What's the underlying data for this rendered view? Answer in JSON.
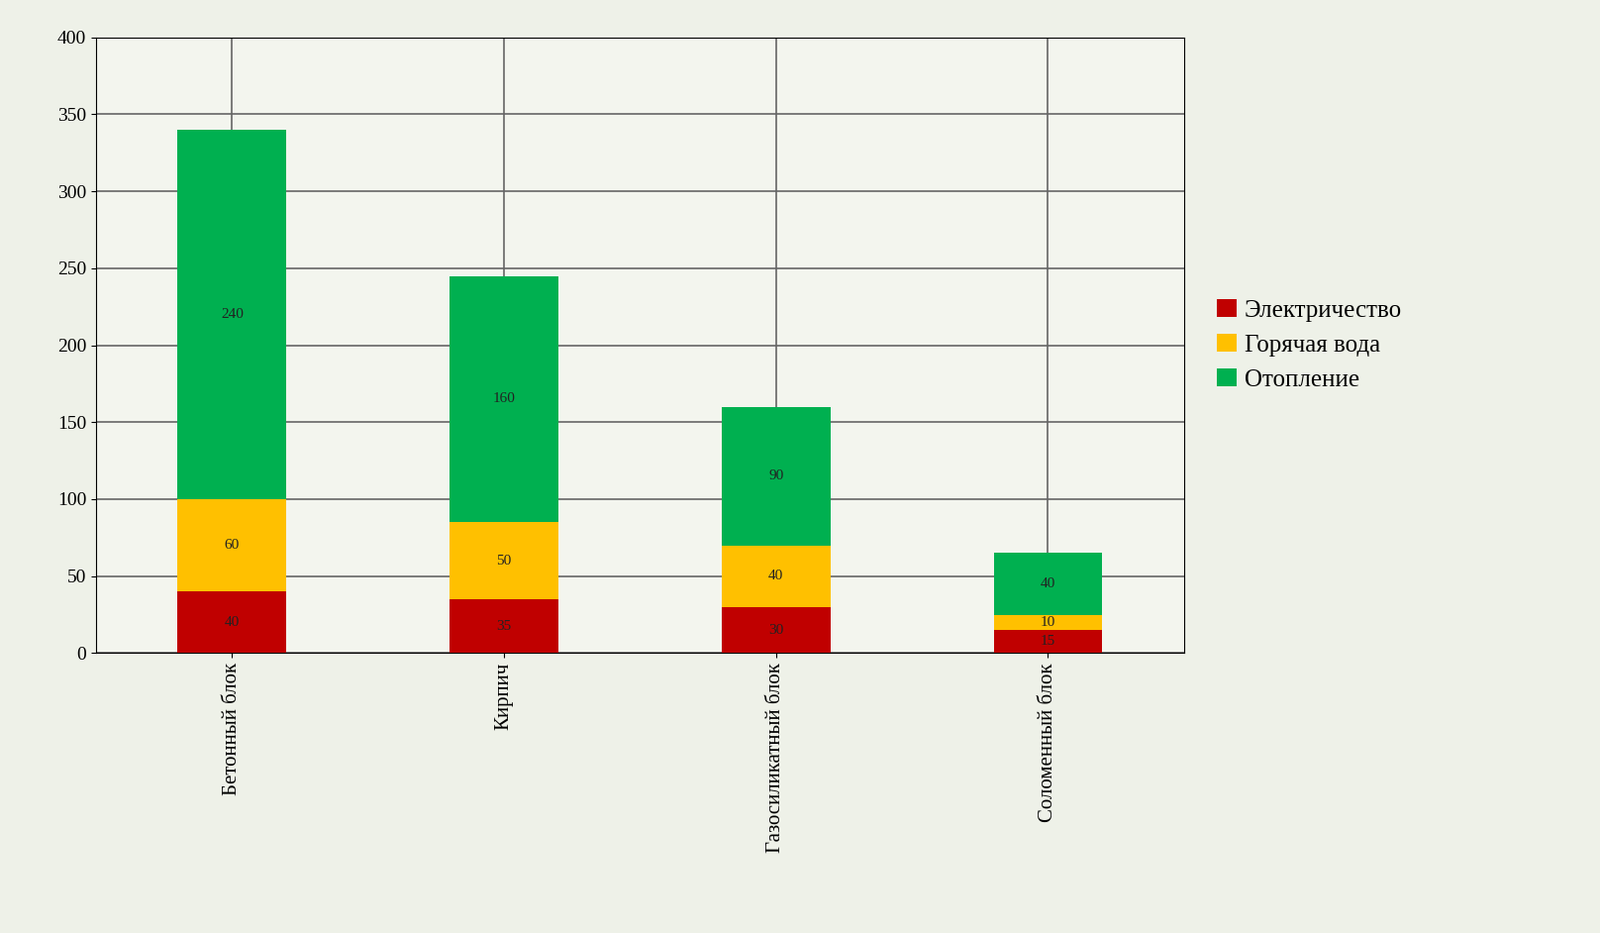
{
  "chart_data": {
    "type": "bar",
    "stacked": true,
    "categories": [
      "Бетонный блок",
      "Кирпич",
      "Газосиликатный блок",
      "Соломенный блок"
    ],
    "series": [
      {
        "name": "Электричество",
        "color": "#c00000",
        "values": [
          40,
          35,
          30,
          15
        ]
      },
      {
        "name": "Горячая вода",
        "color": "#ffc000",
        "values": [
          60,
          50,
          40,
          10
        ]
      },
      {
        "name": "Отопление",
        "color": "#00b050",
        "values": [
          240,
          160,
          90,
          40
        ]
      }
    ],
    "ylim": [
      0,
      400
    ],
    "yticks": [
      0,
      50,
      100,
      150,
      200,
      250,
      300,
      350,
      400
    ],
    "grid": true,
    "legend": "right",
    "data_labels": true
  }
}
